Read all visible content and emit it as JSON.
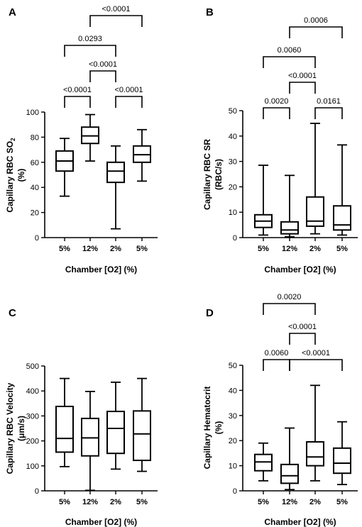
{
  "chart_data": [
    {
      "type": "boxplot",
      "panel_label": "A",
      "categories": [
        "5%",
        "12%",
        "2%",
        "5%"
      ],
      "ylabel": "Capillary RBC SO",
      "ylabel_sub": "2",
      "ylabel_unit": "(%)",
      "xlabel": "Chamber [O2] (%)",
      "ylim": [
        0,
        100
      ],
      "yticks": [
        "0",
        "20",
        "40",
        "60",
        "80",
        "100"
      ],
      "boxes": [
        {
          "min": 33,
          "q1": 53,
          "median": 61,
          "q3": 69,
          "max": 79
        },
        {
          "min": 61,
          "q1": 75,
          "median": 81,
          "q3": 88,
          "max": 98
        },
        {
          "min": 7,
          "q1": 44,
          "median": 53,
          "q3": 60,
          "max": 73
        },
        {
          "min": 45,
          "q1": 60,
          "median": 66,
          "q3": 73,
          "max": 86
        }
      ],
      "comparisons": [
        {
          "from": 0,
          "to": 1,
          "label": "<0.0001"
        },
        {
          "from": 2,
          "to": 3,
          "label": "<0.0001"
        },
        {
          "from": 1,
          "to": 2,
          "label": "<0.0001"
        },
        {
          "from": 0,
          "to": 2,
          "label": "0.0293"
        },
        {
          "from": 1,
          "to": 3,
          "label": "<0.0001"
        }
      ]
    },
    {
      "type": "boxplot",
      "panel_label": "B",
      "categories": [
        "5%",
        "12%",
        "2%",
        "5%"
      ],
      "ylabel": "Capillary RBC SR",
      "ylabel_sub": "",
      "ylabel_unit": "(RBC/s)",
      "xlabel": "Chamber [O2] (%)",
      "ylim": [
        0,
        50
      ],
      "yticks": [
        "0",
        "10",
        "20",
        "30",
        "40",
        "50"
      ],
      "boxes": [
        {
          "min": 1,
          "q1": 4,
          "median": 6.5,
          "q3": 9,
          "max": 28.5
        },
        {
          "min": 0.3,
          "q1": 1.5,
          "median": 3,
          "q3": 6.2,
          "max": 24.5
        },
        {
          "min": 1.5,
          "q1": 4.5,
          "median": 6.5,
          "q3": 16,
          "max": 45
        },
        {
          "min": 1,
          "q1": 3,
          "median": 5,
          "q3": 12.5,
          "max": 36.5
        }
      ],
      "comparisons": [
        {
          "from": 0,
          "to": 1,
          "label": "0.0020"
        },
        {
          "from": 2,
          "to": 3,
          "label": "0.0161"
        },
        {
          "from": 1,
          "to": 2,
          "label": "<0.0001"
        },
        {
          "from": 0,
          "to": 2,
          "label": "0.0060"
        },
        {
          "from": 1,
          "to": 3,
          "label": "0.0006"
        }
      ]
    },
    {
      "type": "boxplot",
      "panel_label": "C",
      "categories": [
        "5%",
        "12%",
        "2%",
        "5%"
      ],
      "ylabel": "Capillary RBC Velocity",
      "ylabel_sub": "",
      "ylabel_unit": "(μm/s)",
      "xlabel": "Chamber [O2] (%)",
      "ylim": [
        0,
        500
      ],
      "yticks": [
        "0",
        "100",
        "200",
        "300",
        "400",
        "500"
      ],
      "boxes": [
        {
          "min": 97,
          "q1": 155,
          "median": 210,
          "q3": 338,
          "max": 450
        },
        {
          "min": 2,
          "q1": 140,
          "median": 212,
          "q3": 290,
          "max": 398
        },
        {
          "min": 87,
          "q1": 150,
          "median": 250,
          "q3": 318,
          "max": 435
        },
        {
          "min": 78,
          "q1": 122,
          "median": 228,
          "q3": 320,
          "max": 450
        }
      ],
      "comparisons": []
    },
    {
      "type": "boxplot",
      "panel_label": "D",
      "categories": [
        "5%",
        "12%",
        "2%",
        "5%"
      ],
      "ylabel": "Capillary Hematocrit",
      "ylabel_sub": "",
      "ylabel_unit": "(%)",
      "xlabel": "Chamber [O2] (%)",
      "ylim": [
        0,
        50
      ],
      "yticks": [
        "0",
        "10",
        "20",
        "30",
        "40",
        "50"
      ],
      "boxes": [
        {
          "min": 4,
          "q1": 8,
          "median": 11.5,
          "q3": 14.5,
          "max": 19
        },
        {
          "min": 0.5,
          "q1": 3,
          "median": 6,
          "q3": 10.5,
          "max": 25
        },
        {
          "min": 4,
          "q1": 10,
          "median": 13.5,
          "q3": 19.5,
          "max": 42
        },
        {
          "min": 2.5,
          "q1": 7,
          "median": 11,
          "q3": 17,
          "max": 27.5
        }
      ],
      "comparisons": [
        {
          "from": 0,
          "to": 1,
          "label": "0.0060"
        },
        {
          "from": 1,
          "to": 3,
          "label": "<0.0001"
        },
        {
          "from": 1,
          "to": 2,
          "label": "<0.0001"
        },
        {
          "from": 0,
          "to": 2,
          "label": "0.0020"
        }
      ]
    }
  ]
}
